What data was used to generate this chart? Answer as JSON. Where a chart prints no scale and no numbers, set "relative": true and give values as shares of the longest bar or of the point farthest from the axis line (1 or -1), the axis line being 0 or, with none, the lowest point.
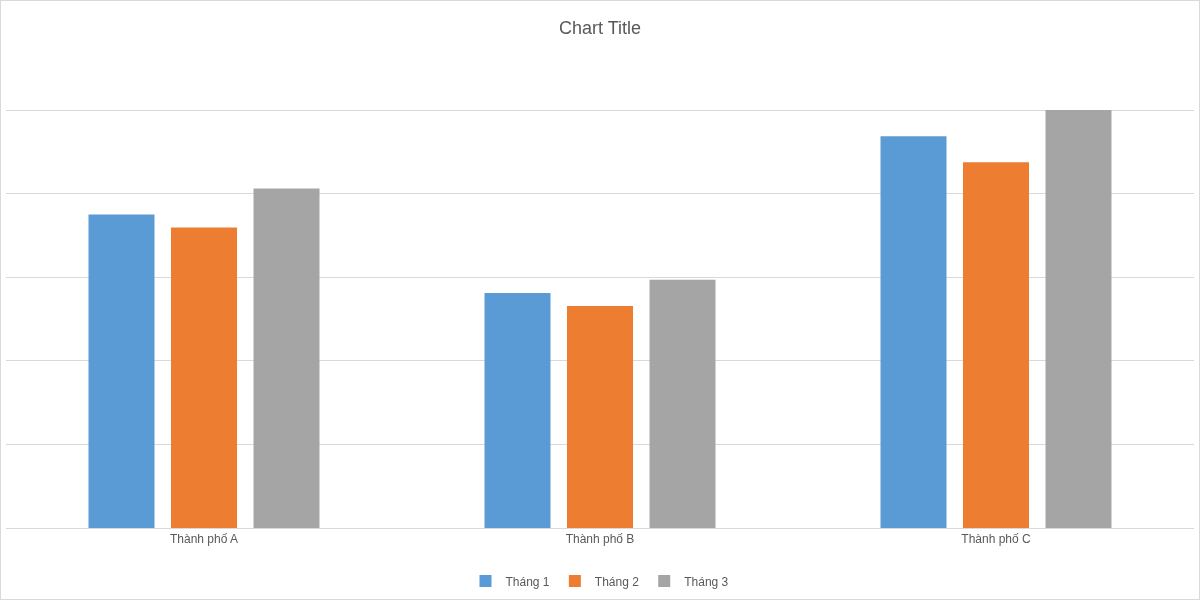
{
  "chart_data": {
    "type": "bar",
    "title": "Chart Title",
    "relative": true,
    "categories": [
      "Thành phố A",
      "Thành phố B",
      "Thành phố C"
    ],
    "series": [
      {
        "name": "Tháng 1",
        "color": "#5b9bd5",
        "values": [
          0.75,
          0.5625,
          0.9375
        ]
      },
      {
        "name": "Tháng 2",
        "color": "#ed7d31",
        "values": [
          0.71875,
          0.53125,
          0.875
        ]
      },
      {
        "name": "Tháng 3",
        "color": "#a5a5a5",
        "values": [
          0.8125,
          0.59375,
          1
        ]
      }
    ],
    "grid": "y",
    "legend": "bottom"
  }
}
